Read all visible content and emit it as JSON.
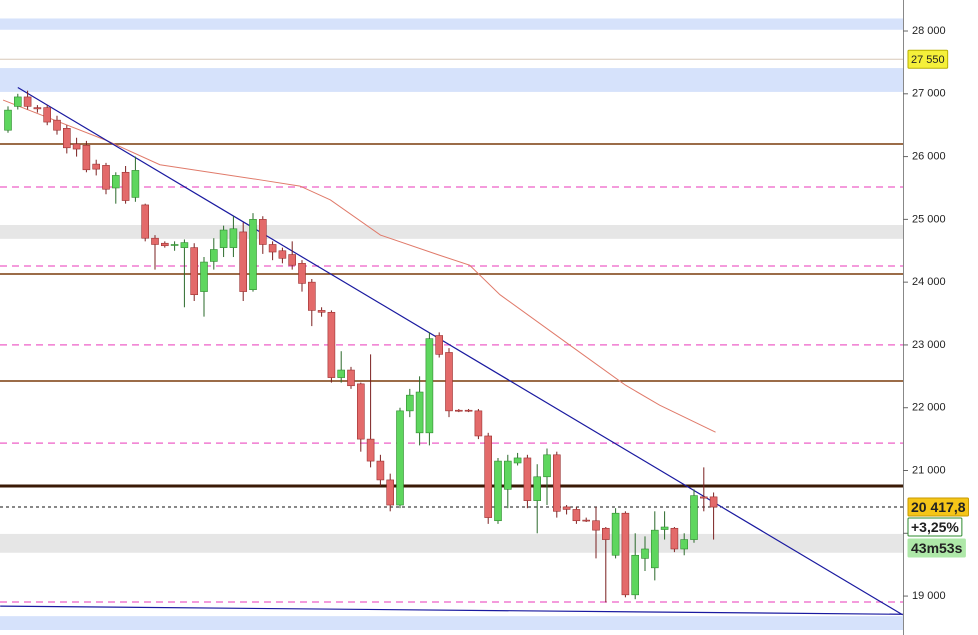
{
  "chart_data": {
    "type": "candlestick",
    "open": [
      26420,
      26800,
      26950,
      26780,
      26780,
      26580,
      26450,
      26200,
      26180,
      25880,
      25860,
      25500,
      25750,
      25350,
      25230,
      24700,
      24620,
      24590,
      24550,
      24550,
      23850,
      24330,
      24550,
      24550,
      24800,
      23880,
      25000,
      24600,
      24500,
      24440,
      24300,
      24000,
      23550,
      23520,
      22480,
      22600,
      22380,
      21500,
      21150,
      20850,
      20450,
      21950,
      21600,
      21600,
      23150,
      22880,
      21960,
      21960,
      21950,
      21550,
      20200,
      20700,
      21120,
      21200,
      20520,
      20900,
      21250,
      20420,
      20380,
      20210,
      20200,
      20080,
      19650,
      20320,
      19020,
      19600,
      19450,
      20060,
      20080,
      19750,
      19900,
      20580,
      20580
    ],
    "high": [
      26800,
      27000,
      27050,
      26820,
      26820,
      26650,
      26500,
      26300,
      26250,
      25950,
      25900,
      25750,
      25850,
      26000,
      25250,
      24750,
      24650,
      24650,
      24680,
      24620,
      24400,
      24700,
      24900,
      25050,
      24950,
      25100,
      25050,
      24650,
      24550,
      24650,
      24350,
      24050,
      23600,
      23550,
      22900,
      22650,
      22400,
      22850,
      21250,
      20950,
      22000,
      22300,
      22500,
      23200,
      23200,
      22950,
      21980,
      21980,
      21980,
      21600,
      21200,
      21250,
      21280,
      21250,
      21100,
      21350,
      21300,
      20450,
      20420,
      20250,
      20420,
      20100,
      20400,
      20350,
      20000,
      19950,
      20350,
      20350,
      20100,
      20000,
      20700,
      21050,
      20650
    ],
    "low": [
      26380,
      26750,
      26750,
      26700,
      26500,
      26350,
      26050,
      26000,
      25750,
      25700,
      25400,
      25250,
      25250,
      25280,
      24650,
      24200,
      24550,
      24500,
      23600,
      23700,
      23450,
      24200,
      24400,
      24400,
      23700,
      23850,
      24450,
      24350,
      24300,
      24200,
      23850,
      23300,
      23450,
      22400,
      22400,
      22300,
      21300,
      21050,
      20750,
      20350,
      20400,
      21850,
      21400,
      21400,
      22800,
      21850,
      21930,
      21930,
      21500,
      20150,
      20150,
      20400,
      21080,
      20400,
      20000,
      20450,
      20250,
      20300,
      20150,
      20180,
      19600,
      18900,
      19600,
      18980,
      18950,
      19400,
      19250,
      19900,
      19700,
      19650,
      19850,
      20350,
      19900
    ],
    "close": [
      26740,
      26950,
      26800,
      26760,
      26550,
      26420,
      26140,
      26120,
      25790,
      25800,
      25480,
      25700,
      25300,
      25780,
      24700,
      24600,
      24580,
      24600,
      24630,
      23800,
      24320,
      24520,
      24830,
      24850,
      23850,
      25000,
      24600,
      24480,
      24380,
      24270,
      23980,
      23550,
      23520,
      22480,
      22600,
      22350,
      21500,
      21150,
      20850,
      20450,
      21950,
      22200,
      22250,
      23100,
      22850,
      21950,
      21950,
      21950,
      21550,
      20250,
      21150,
      21150,
      21200,
      20520,
      20900,
      21250,
      20350,
      20380,
      20200,
      20200,
      20050,
      19900,
      20320,
      19020,
      19650,
      19750,
      20050,
      20100,
      19750,
      19900,
      20600,
      20560,
      20418
    ],
    "up_color": "#5ed65e",
    "down_color": "#e36a6a",
    "ylim": [
      18380,
      28494
    ],
    "yticks": [
      {
        "value": 28000,
        "label": "28 000"
      },
      {
        "value": 27000,
        "label": "27 000"
      },
      {
        "value": 26000,
        "label": "26 000"
      },
      {
        "value": 25000,
        "label": "25 000"
      },
      {
        "value": 24000,
        "label": "24 000"
      },
      {
        "value": 23000,
        "label": "23 000"
      },
      {
        "value": 22000,
        "label": "22 000"
      },
      {
        "value": 21000,
        "label": "21 000"
      },
      {
        "value": 20000,
        "label": "20 000"
      },
      {
        "value": 19000,
        "label": "19 000"
      }
    ],
    "moving_average": {
      "color": "#e07a6a",
      "x": [
        -0.5,
        10,
        15.5,
        25.7,
        29.8,
        32.9,
        38,
        44,
        47.1,
        50.2,
        57.3,
        63,
        66.5,
        72.2
      ],
      "values": [
        26900,
        26260,
        25870,
        25630,
        25530,
        25310,
        24750,
        24430,
        24270,
        23800,
        23000,
        22360,
        22040,
        21610
      ]
    },
    "support_levels": {
      "color": "#7a3b0c",
      "values": [
        26200,
        24130,
        22425,
        20753
      ]
    },
    "dashed_levels": {
      "color": "#f07ad0",
      "values": [
        25515,
        24257,
        23000,
        21437,
        18905
      ]
    },
    "blue_zones": {
      "color": "#d6e2fb",
      "ranges": [
        [
          28020,
          28200
        ],
        [
          27030,
          27410
        ],
        [
          18460,
          18680
        ]
      ]
    },
    "gray_zones": {
      "color": "#e6e6e6",
      "ranges": [
        [
          24690,
          24910
        ],
        [
          19690,
          19990
        ]
      ]
    },
    "trendlines": [
      {
        "color": "#1a1aa0",
        "x": [
          1,
          91.3
        ],
        "values": [
          27100,
          18700
        ]
      },
      {
        "color": "#1a1aa0",
        "x": [
          -0.8,
          91.3
        ],
        "values": [
          18840,
          18710
        ]
      }
    ],
    "marker": {
      "value": 27550,
      "label": "27 550"
    },
    "price_label": {
      "value": 20417.8,
      "label": "20 417,8"
    },
    "change": "+3,25%",
    "timer": "43m53s"
  }
}
